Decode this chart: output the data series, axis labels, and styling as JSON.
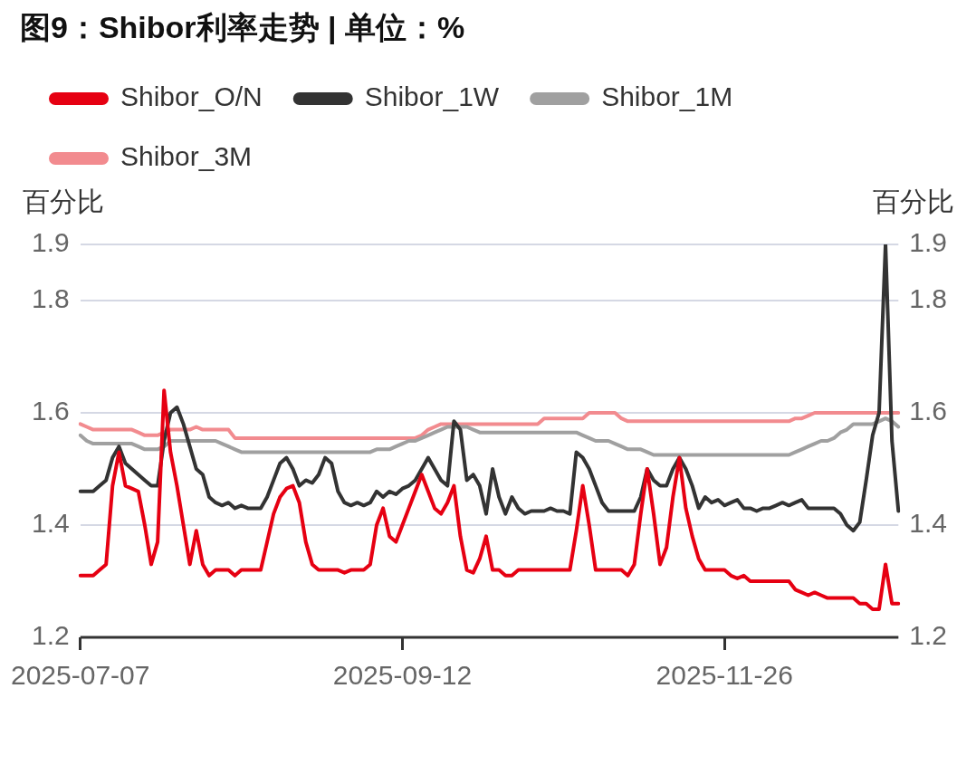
{
  "chart_data": {
    "type": "line",
    "title": "图9：Shibor利率走势 | 单位：%",
    "ylabel": "百分比",
    "y2label": "百分比",
    "categories": [
      "2025-07-07",
      null,
      null,
      null,
      null,
      null,
      null,
      null,
      null,
      null,
      null,
      null,
      null,
      null,
      null,
      null,
      null,
      null,
      null,
      null,
      null,
      null,
      null,
      null,
      null,
      null,
      null,
      null,
      null,
      null,
      null,
      null,
      null,
      null,
      null,
      null,
      null,
      null,
      null,
      null,
      null,
      null,
      null,
      null,
      null,
      null,
      null,
      null,
      null,
      null,
      "2025-09-12",
      null,
      null,
      null,
      null,
      null,
      null,
      null,
      null,
      null,
      null,
      null,
      null,
      null,
      null,
      null,
      null,
      null,
      null,
      null,
      null,
      null,
      null,
      null,
      null,
      null,
      null,
      null,
      null,
      null,
      null,
      null,
      null,
      null,
      null,
      null,
      null,
      null,
      null,
      null,
      null,
      null,
      null,
      null,
      null,
      null,
      null,
      null,
      null,
      null,
      "2025-11-26",
      null,
      null,
      null,
      null,
      null,
      null,
      null,
      null,
      null,
      null,
      null,
      null,
      null,
      null,
      null,
      null,
      null,
      null,
      null,
      null,
      null,
      null,
      null,
      null,
      null,
      null,
      null
    ],
    "series": [
      {
        "name": "Shibor_O/N",
        "color": "#e60012",
        "values": [
          1.31,
          1.31,
          1.31,
          1.32,
          1.33,
          1.47,
          1.53,
          1.47,
          1.465,
          1.46,
          1.4,
          1.33,
          1.37,
          1.64,
          1.53,
          1.47,
          1.4,
          1.33,
          1.39,
          1.33,
          1.31,
          1.32,
          1.32,
          1.32,
          1.31,
          1.32,
          1.32,
          1.32,
          1.32,
          1.37,
          1.42,
          1.45,
          1.465,
          1.47,
          1.44,
          1.37,
          1.33,
          1.32,
          1.32,
          1.32,
          1.32,
          1.315,
          1.32,
          1.32,
          1.32,
          1.33,
          1.4,
          1.43,
          1.38,
          1.37,
          1.4,
          1.43,
          1.46,
          1.49,
          1.46,
          1.43,
          1.42,
          1.44,
          1.47,
          1.38,
          1.32,
          1.315,
          1.34,
          1.38,
          1.32,
          1.32,
          1.31,
          1.31,
          1.32,
          1.32,
          1.32,
          1.32,
          1.32,
          1.32,
          1.32,
          1.32,
          1.32,
          1.39,
          1.47,
          1.4,
          1.32,
          1.32,
          1.32,
          1.32,
          1.32,
          1.31,
          1.33,
          1.42,
          1.5,
          1.42,
          1.33,
          1.36,
          1.45,
          1.52,
          1.43,
          1.38,
          1.34,
          1.32,
          1.32,
          1.32,
          1.32,
          1.31,
          1.305,
          1.31,
          1.3,
          1.3,
          1.3,
          1.3,
          1.3,
          1.3,
          1.3,
          1.285,
          1.28,
          1.275,
          1.28,
          1.275,
          1.27,
          1.27,
          1.27,
          1.27,
          1.27,
          1.26,
          1.26,
          1.25,
          1.25,
          1.33,
          1.26,
          1.26
        ]
      },
      {
        "name": "Shibor_1W",
        "color": "#333333",
        "values": [
          1.46,
          1.46,
          1.46,
          1.47,
          1.48,
          1.52,
          1.54,
          1.51,
          1.5,
          1.49,
          1.48,
          1.47,
          1.47,
          1.55,
          1.6,
          1.61,
          1.58,
          1.54,
          1.5,
          1.49,
          1.45,
          1.44,
          1.435,
          1.44,
          1.43,
          1.435,
          1.43,
          1.43,
          1.43,
          1.45,
          1.48,
          1.51,
          1.52,
          1.5,
          1.47,
          1.48,
          1.475,
          1.49,
          1.52,
          1.51,
          1.46,
          1.44,
          1.435,
          1.44,
          1.435,
          1.44,
          1.46,
          1.45,
          1.46,
          1.455,
          1.465,
          1.47,
          1.48,
          1.5,
          1.52,
          1.5,
          1.48,
          1.47,
          1.585,
          1.57,
          1.48,
          1.49,
          1.47,
          1.42,
          1.5,
          1.45,
          1.42,
          1.45,
          1.43,
          1.42,
          1.425,
          1.425,
          1.425,
          1.43,
          1.425,
          1.425,
          1.42,
          1.53,
          1.52,
          1.5,
          1.47,
          1.44,
          1.425,
          1.425,
          1.425,
          1.425,
          1.425,
          1.45,
          1.5,
          1.48,
          1.47,
          1.47,
          1.5,
          1.52,
          1.5,
          1.47,
          1.43,
          1.45,
          1.44,
          1.445,
          1.435,
          1.44,
          1.445,
          1.43,
          1.43,
          1.425,
          1.43,
          1.43,
          1.435,
          1.44,
          1.435,
          1.44,
          1.445,
          1.43,
          1.43,
          1.43,
          1.43,
          1.43,
          1.42,
          1.4,
          1.39,
          1.405,
          1.48,
          1.56,
          1.6,
          1.9,
          1.55,
          1.425
        ]
      },
      {
        "name": "Shibor_1M",
        "color": "#a0a0a0",
        "values": [
          1.56,
          1.55,
          1.545,
          1.545,
          1.545,
          1.545,
          1.545,
          1.545,
          1.545,
          1.54,
          1.535,
          1.535,
          1.535,
          1.54,
          1.55,
          1.55,
          1.55,
          1.55,
          1.55,
          1.55,
          1.55,
          1.55,
          1.545,
          1.54,
          1.535,
          1.53,
          1.53,
          1.53,
          1.53,
          1.53,
          1.53,
          1.53,
          1.53,
          1.53,
          1.53,
          1.53,
          1.53,
          1.53,
          1.53,
          1.53,
          1.53,
          1.53,
          1.53,
          1.53,
          1.53,
          1.53,
          1.535,
          1.535,
          1.535,
          1.54,
          1.545,
          1.55,
          1.55,
          1.555,
          1.56,
          1.565,
          1.57,
          1.575,
          1.575,
          1.575,
          1.575,
          1.57,
          1.565,
          1.565,
          1.565,
          1.565,
          1.565,
          1.565,
          1.565,
          1.565,
          1.565,
          1.565,
          1.565,
          1.565,
          1.565,
          1.565,
          1.565,
          1.565,
          1.56,
          1.555,
          1.55,
          1.55,
          1.55,
          1.545,
          1.54,
          1.535,
          1.535,
          1.535,
          1.53,
          1.525,
          1.525,
          1.525,
          1.525,
          1.525,
          1.525,
          1.525,
          1.525,
          1.525,
          1.525,
          1.525,
          1.525,
          1.525,
          1.525,
          1.525,
          1.525,
          1.525,
          1.525,
          1.525,
          1.525,
          1.525,
          1.525,
          1.53,
          1.535,
          1.54,
          1.545,
          1.55,
          1.55,
          1.555,
          1.565,
          1.57,
          1.58,
          1.58,
          1.58,
          1.58,
          1.585,
          1.59,
          1.585,
          1.575
        ]
      },
      {
        "name": "Shibor_3M",
        "color": "#f28b8f",
        "values": [
          1.58,
          1.575,
          1.57,
          1.57,
          1.57,
          1.57,
          1.57,
          1.57,
          1.57,
          1.565,
          1.56,
          1.56,
          1.56,
          1.565,
          1.57,
          1.57,
          1.57,
          1.57,
          1.575,
          1.57,
          1.57,
          1.57,
          1.57,
          1.57,
          1.555,
          1.555,
          1.555,
          1.555,
          1.555,
          1.555,
          1.555,
          1.555,
          1.555,
          1.555,
          1.555,
          1.555,
          1.555,
          1.555,
          1.555,
          1.555,
          1.555,
          1.555,
          1.555,
          1.555,
          1.555,
          1.555,
          1.555,
          1.555,
          1.555,
          1.555,
          1.555,
          1.555,
          1.555,
          1.56,
          1.57,
          1.575,
          1.58,
          1.58,
          1.58,
          1.58,
          1.58,
          1.58,
          1.58,
          1.58,
          1.58,
          1.58,
          1.58,
          1.58,
          1.58,
          1.58,
          1.58,
          1.58,
          1.59,
          1.59,
          1.59,
          1.59,
          1.59,
          1.59,
          1.59,
          1.6,
          1.6,
          1.6,
          1.6,
          1.6,
          1.59,
          1.585,
          1.585,
          1.585,
          1.585,
          1.585,
          1.585,
          1.585,
          1.585,
          1.585,
          1.585,
          1.585,
          1.585,
          1.585,
          1.585,
          1.585,
          1.585,
          1.585,
          1.585,
          1.585,
          1.585,
          1.585,
          1.585,
          1.585,
          1.585,
          1.585,
          1.585,
          1.59,
          1.59,
          1.595,
          1.6,
          1.6,
          1.6,
          1.6,
          1.6,
          1.6,
          1.6,
          1.6,
          1.6,
          1.6,
          1.6,
          1.6,
          1.6,
          1.6
        ]
      }
    ],
    "ylim": [
      1.2,
      1.9
    ],
    "yticks": [
      1.2,
      1.4,
      1.6,
      1.8,
      1.9
    ],
    "y2lim": [
      1.2,
      1.9
    ],
    "y2ticks": [
      1.2,
      1.4,
      1.6,
      1.8,
      1.9
    ],
    "grid": "y",
    "legend": "top",
    "marker": "none",
    "line_style": "solid"
  }
}
